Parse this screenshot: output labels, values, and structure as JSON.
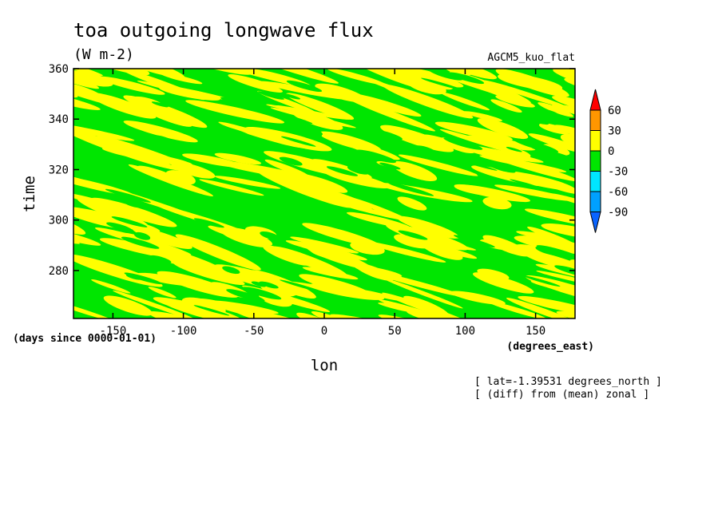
{
  "chart_data": {
    "type": "heatmap",
    "title": "toa outgoing longwave flux",
    "units": "(W m-2)",
    "model_label": "AGCM5_kuo_flat",
    "xlabel": "lon",
    "ylabel": "time",
    "x_units": "(degrees_east)",
    "y_units": "(days since 0000-01-01)",
    "xlim": [
      -178,
      178
    ],
    "ylim": [
      261,
      360
    ],
    "x_ticks": [
      -150,
      -100,
      -50,
      0,
      50,
      100,
      150
    ],
    "x_tick_labels": [
      "-150",
      "-100",
      "-50",
      "0",
      "50",
      "100",
      "150"
    ],
    "y_ticks": [
      280,
      300,
      320,
      340,
      360
    ],
    "y_tick_labels": [
      "280",
      "300",
      "320",
      "340",
      "360"
    ],
    "colorbar": {
      "levels": [
        -90,
        -60,
        -30,
        0,
        30,
        60
      ],
      "level_labels": [
        "-90",
        "-60",
        "-30",
        "0",
        "30",
        "60"
      ],
      "colors": [
        "#0a64ff",
        "#00a0ff",
        "#00e6ff",
        "#00e600",
        "#ffff00",
        "#ff9600",
        "#ff0000"
      ]
    },
    "field_description": "Alternating green (-30 to 0) and yellow (0 to 30) streaks slanting downward to the east across the whole domain.",
    "dominant_colors": {
      "negative": "#00e600",
      "positive": "#ffff00"
    },
    "notes": [
      "[ lat=-1.39531 degrees_north ]",
      "[ (diff) from (mean) zonal ]"
    ]
  }
}
